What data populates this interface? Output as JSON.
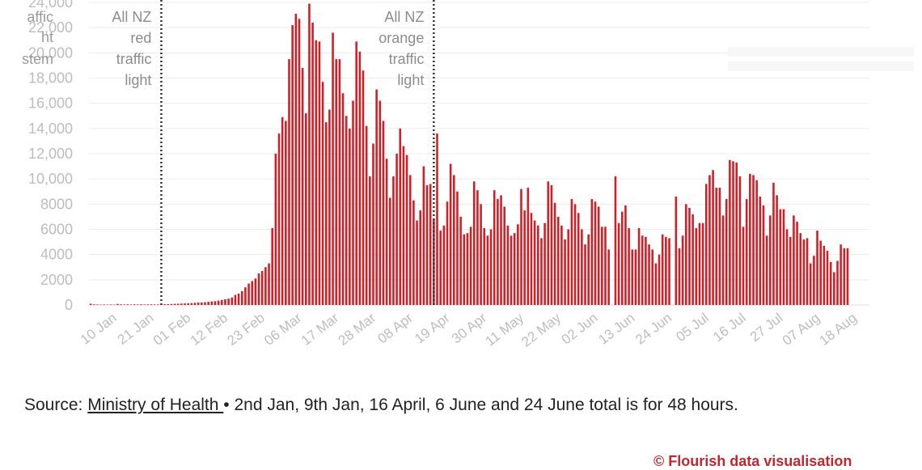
{
  "left_cut_label": [
    "affic",
    "ht",
    "stem"
  ],
  "annotations": [
    {
      "lines": [
        "All NZ",
        "red",
        "traffic",
        "light"
      ],
      "x": "2022-01-23"
    },
    {
      "lines": [
        "All NZ",
        "orange",
        "traffic",
        "light"
      ],
      "x": "2022-04-14"
    }
  ],
  "source": {
    "prefix": "Source: ",
    "link_text": "Ministry of Health ",
    "note": "• 2nd Jan, 9th Jan, 16 April, 6 June and 24 June total is for 48 hours."
  },
  "credit_text": "© Flourish data visualisation",
  "colors": {
    "bar": "#cf2027",
    "grid": "#ececec",
    "axis": "#dddddd",
    "dotted": "#333333"
  },
  "chart_data": {
    "type": "bar",
    "title": "",
    "xlabel": "",
    "ylabel": "",
    "ylim": [
      0,
      24000
    ],
    "yticks": [
      0,
      2000,
      4000,
      6000,
      8000,
      10000,
      12000,
      14000,
      16000,
      18000,
      20000,
      22000,
      24000
    ],
    "ytick_labels": [
      "0",
      "2000",
      "4000",
      "6000",
      "8000",
      "10,000",
      "12,000",
      "14,000",
      "16,000",
      "18,000",
      "20,000",
      "22,000",
      "24,000"
    ],
    "x_range": [
      "2022-01-02",
      "2022-08-22"
    ],
    "xtick_labels": [
      "10 Jan",
      "21 Jan",
      "01 Feb",
      "12 Feb",
      "23 Feb",
      "06 Mar",
      "17 Mar",
      "28 Mar",
      "08 Apr",
      "19 Apr",
      "30 Apr",
      "11 May",
      "22 May",
      "02 Jun",
      "13 Jun",
      "24 Jun",
      "05 Jul",
      "16 Jul",
      "27 Jul",
      "07 Aug",
      "18 Aug"
    ],
    "xtick_dates": [
      "2022-01-10",
      "2022-01-21",
      "2022-02-01",
      "2022-02-12",
      "2022-02-23",
      "2022-03-06",
      "2022-03-17",
      "2022-03-28",
      "2022-04-08",
      "2022-04-19",
      "2022-04-30",
      "2022-05-11",
      "2022-05-22",
      "2022-06-02",
      "2022-06-13",
      "2022-06-24",
      "2022-07-05",
      "2022-07-16",
      "2022-07-27",
      "2022-08-07",
      "2022-08-18"
    ],
    "grid": true,
    "series": [
      {
        "start_date": "2022-01-02",
        "values": [
          100,
          50,
          40,
          30,
          40,
          30,
          40,
          30,
          80,
          50,
          40,
          50,
          40,
          50,
          40,
          50,
          40,
          50,
          50,
          40,
          40,
          50,
          60,
          70,
          80,
          90,
          100,
          110,
          120,
          130,
          150,
          170,
          190,
          200,
          220,
          250,
          280,
          300,
          350,
          400,
          450,
          500,
          600,
          800,
          900,
          1100,
          1400,
          1700,
          1900,
          2100,
          2500,
          2700,
          3000,
          3300,
          6100,
          12000,
          13600,
          14900,
          14600,
          19500,
          22200,
          23100,
          22700,
          18800,
          15200,
          23900,
          22400,
          21000,
          20900,
          17700,
          14500,
          15500,
          21600,
          19500,
          19500,
          16800,
          15000,
          14000,
          16200,
          20900,
          20100,
          18600,
          14200,
          10200,
          12800,
          17100,
          16200,
          14600,
          11600,
          8500,
          10200,
          12000,
          14000,
          12600,
          11900,
          10300,
          8300,
          6700,
          7500,
          11000,
          9500,
          9600,
          6800,
          13600,
          5900,
          6300,
          8200,
          11200,
          10300,
          9000,
          7000,
          5600,
          5700,
          6200,
          9800,
          9100,
          8000,
          6100,
          5500,
          6000,
          9100,
          8400,
          8700,
          7800,
          6300,
          5500,
          5700,
          6400,
          9200,
          7500,
          9300,
          7300,
          6700,
          6300,
          5300,
          6500,
          9800,
          9500,
          8100,
          7000,
          6300,
          5200,
          6000,
          8400,
          8000,
          7300,
          6000,
          4800,
          5600,
          8400,
          8200,
          7800,
          6200,
          6200,
          4400,
          0,
          10200,
          6500,
          7400,
          7900,
          6100,
          4400,
          4400,
          6100,
          5500,
          5400,
          4800,
          4400,
          3300,
          4000,
          5600,
          5400,
          5300,
          0,
          8600,
          4500,
          5500,
          8000,
          7700,
          7200,
          6100,
          6500,
          6500,
          9600,
          10300,
          10700,
          9300,
          9300,
          7100,
          8400,
          11500,
          11400,
          11300,
          10200,
          6200,
          8400,
          10400,
          10300,
          9900,
          8600,
          7900,
          5500,
          7100,
          9700,
          8700,
          7600,
          7600,
          6000,
          5400,
          7100,
          6600,
          5700,
          5200,
          5300,
          3300,
          3900,
          5900,
          5100,
          4700,
          4300,
          3400,
          2600,
          3500,
          4800,
          4500,
          4500
        ]
      }
    ]
  }
}
